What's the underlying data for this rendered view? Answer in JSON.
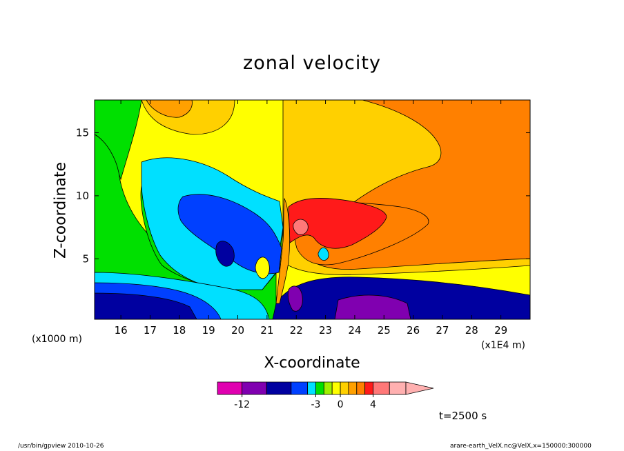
{
  "chart_data": {
    "type": "heatmap",
    "title": "zonal velocity",
    "xlabel": "X-coordinate",
    "ylabel": "Z-coordinate",
    "x_unit": "(x1E4 m)",
    "y_unit": "(x1000 m)",
    "xlim": [
      15.1,
      30.0
    ],
    "ylim": [
      0.2,
      17.6
    ],
    "x_ticks": [
      16,
      17,
      18,
      19,
      20,
      21,
      22,
      23,
      24,
      25,
      26,
      27,
      28,
      29
    ],
    "y_ticks": [
      5,
      10,
      15
    ],
    "contour_levels": [
      -15,
      -12,
      -9,
      -6,
      -4,
      -3,
      -2,
      -1,
      0,
      1,
      2,
      3,
      4,
      6,
      8
    ],
    "colorbar_labels": [
      "-12",
      "-3",
      "0",
      "4"
    ],
    "colors": [
      "#e000b0",
      "#8000b0",
      "#0000a0",
      "#0040ff",
      "#00e0ff",
      "#00e000",
      "#a0f000",
      "#ffff00",
      "#ffd000",
      "#ffa000",
      "#ff8000",
      "#ff1a1a",
      "#ff7878",
      "#ffb0b0"
    ],
    "grid": false,
    "annotation": "t=2500 s"
  },
  "footer": {
    "left": "/usr/bin/gpview   2010-10-26",
    "right": "arare-earth_VelX.nc@VelX,x=150000:300000"
  }
}
